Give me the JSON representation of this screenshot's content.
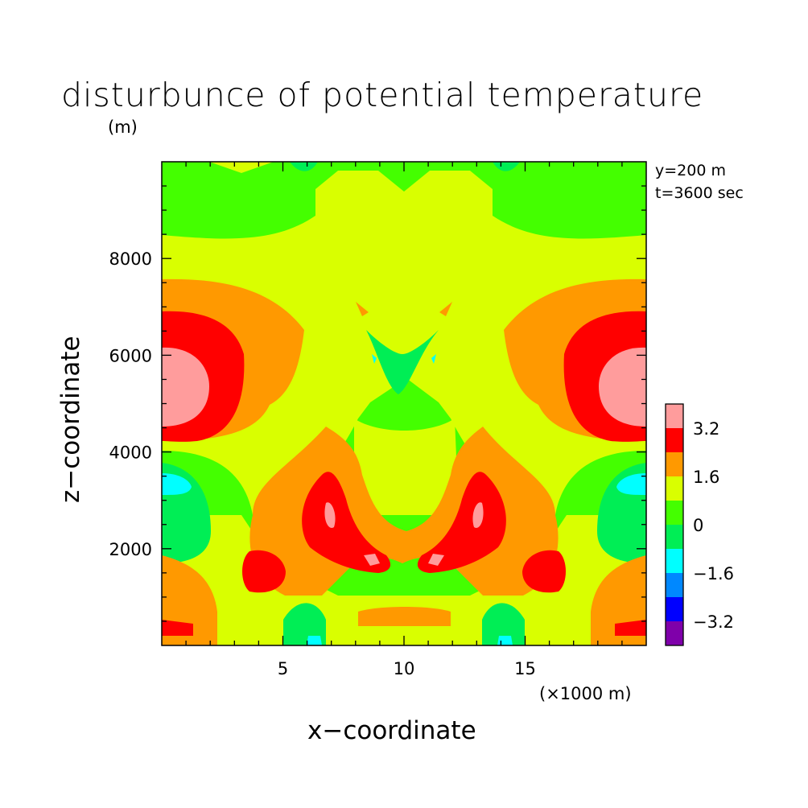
{
  "chart_data": {
    "type": "heatmap",
    "title": "disturbunce of potential temperature",
    "xlabel": "x−coordinate",
    "ylabel": "z−coordinate",
    "y_unit": "(m)",
    "x_unit": "(×1000 m)",
    "annotations": [
      "y=200 m",
      "t=3600 sec"
    ],
    "xlim": [
      0,
      20
    ],
    "ylim": [
      0,
      10000
    ],
    "x_ticks": [
      {
        "value": 5,
        "label": "5"
      },
      {
        "value": 10,
        "label": "10"
      },
      {
        "value": 15,
        "label": "15"
      }
    ],
    "y_ticks": [
      {
        "value": 2000,
        "label": "2000"
      },
      {
        "value": 4000,
        "label": "4000"
      },
      {
        "value": 6000,
        "label": "6000"
      },
      {
        "value": 8000,
        "label": "8000"
      }
    ],
    "colorbar": {
      "levels": [
        {
          "range": [
            -4.0,
            -3.2
          ],
          "color": "#7F00AA"
        },
        {
          "range": [
            -3.2,
            -2.4
          ],
          "color": "#0000FF"
        },
        {
          "range": [
            -2.4,
            -1.6
          ],
          "color": "#0088FF"
        },
        {
          "range": [
            -1.6,
            -0.8
          ],
          "color": "#00FFFF"
        },
        {
          "range": [
            -0.8,
            0.0
          ],
          "color": "#00EE55"
        },
        {
          "range": [
            0.0,
            0.8
          ],
          "color": "#44FF00"
        },
        {
          "range": [
            0.8,
            1.6
          ],
          "color": "#D9FF00"
        },
        {
          "range": [
            1.6,
            2.4
          ],
          "color": "#FF9900"
        },
        {
          "range": [
            2.4,
            3.2
          ],
          "color": "#FF0000"
        },
        {
          "range": [
            3.2,
            4.0
          ],
          "color": "#FF9C9C"
        }
      ],
      "labels": [
        {
          "value": 3.2,
          "label": "3.2"
        },
        {
          "value": 1.6,
          "label": "1.6"
        },
        {
          "value": 0,
          "label": "0"
        },
        {
          "value": -1.6,
          "label": "−1.6"
        },
        {
          "value": -3.2,
          "label": "−3.2"
        }
      ]
    }
  }
}
